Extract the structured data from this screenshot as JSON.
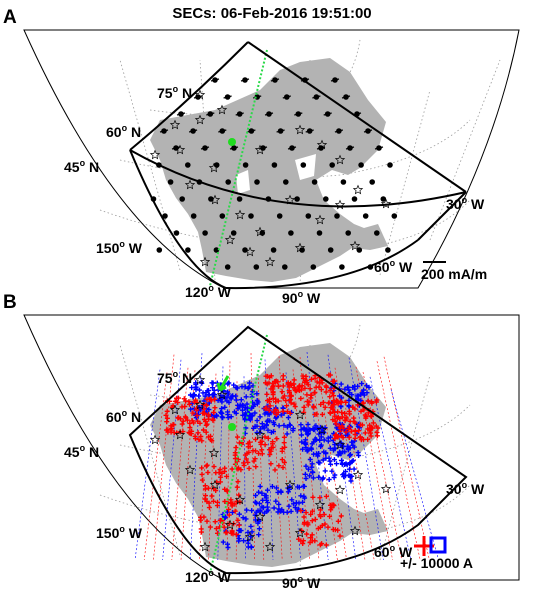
{
  "title": "SECs: 06-Feb-2016 19:51:00",
  "panels": [
    {
      "id": "A",
      "label": "A",
      "lat_labels": [
        "75",
        "60",
        "45"
      ],
      "lon_labels": [
        "150",
        "120",
        "90",
        "60",
        "30"
      ],
      "lat_suffix": "N",
      "lon_suffix": "W",
      "degree_mark": "o",
      "scale_label": "200 mA/m",
      "colors": {
        "land": "#b3b3b3",
        "dots": "#000000",
        "stations": "#000000",
        "meridian": "#2bd94a",
        "marker": "#1fdc1f",
        "graticule": "#9a9a9a"
      }
    },
    {
      "id": "B",
      "label": "B",
      "lat_labels": [
        "75",
        "60",
        "45"
      ],
      "lon_labels": [
        "150",
        "120",
        "90",
        "60",
        "30"
      ],
      "lat_suffix": "N",
      "lon_suffix": "W",
      "degree_mark": "o",
      "scale_label": "+/- 10000 A",
      "colors": {
        "land": "#b3b3b3",
        "positive": "#ff0000",
        "negative": "#0000ff",
        "stations": "#000000",
        "meridian": "#2bd94a",
        "marker": "#1fdc1f",
        "graticule": "#9a9a9a"
      }
    }
  ]
}
